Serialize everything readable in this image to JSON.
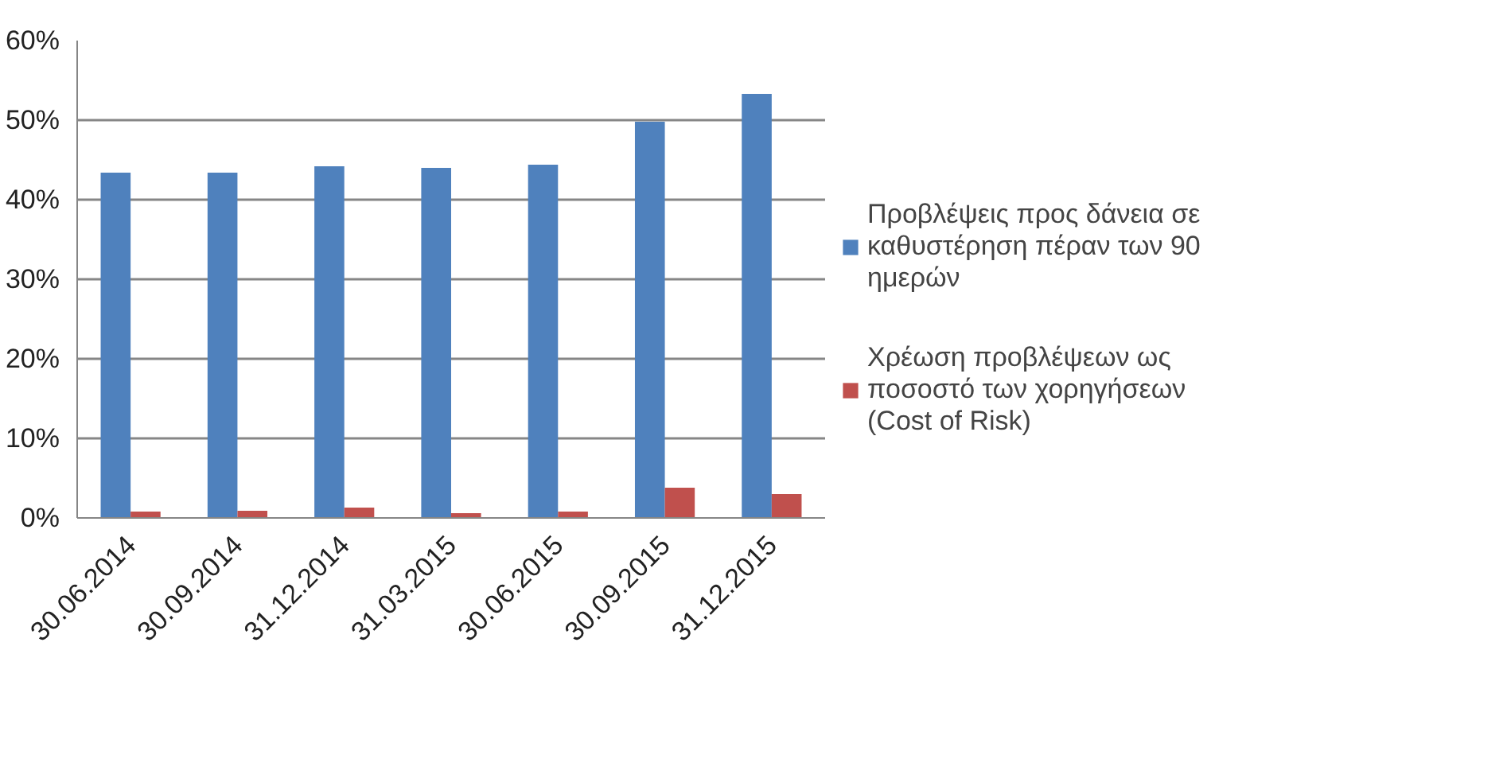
{
  "chart_data": {
    "type": "bar",
    "categories": [
      "30.06.2014",
      "30.09.2014",
      "31.12.2014",
      "31.03.2015",
      "30.06.2015",
      "30.09.2015",
      "31.12.2015"
    ],
    "series": [
      {
        "name": "Προβλέψεις προς δάνεια σε καθυστέρηση πέραν των 90 ημερών",
        "color": "#4f81bd",
        "values": [
          43.4,
          43.4,
          44.2,
          44.0,
          44.4,
          49.8,
          53.3
        ]
      },
      {
        "name": "Χρέωση προβλέψεων ως ποσοστό των χορηγήσεων (Cost of Risk)",
        "color": "#c0504d",
        "values": [
          0.8,
          0.9,
          1.3,
          0.6,
          0.8,
          3.8,
          3.0
        ]
      }
    ],
    "ylim": [
      0,
      60
    ],
    "yticks": [
      {
        "value": 0,
        "label": "0%"
      },
      {
        "value": 10,
        "label": "10%"
      },
      {
        "value": 20,
        "label": "20%"
      },
      {
        "value": 30,
        "label": "30%"
      },
      {
        "value": 40,
        "label": "40%"
      },
      {
        "value": 50,
        "label": "50%"
      },
      {
        "value": 60,
        "label": "60%"
      }
    ],
    "grid": "y",
    "legend": "right"
  }
}
